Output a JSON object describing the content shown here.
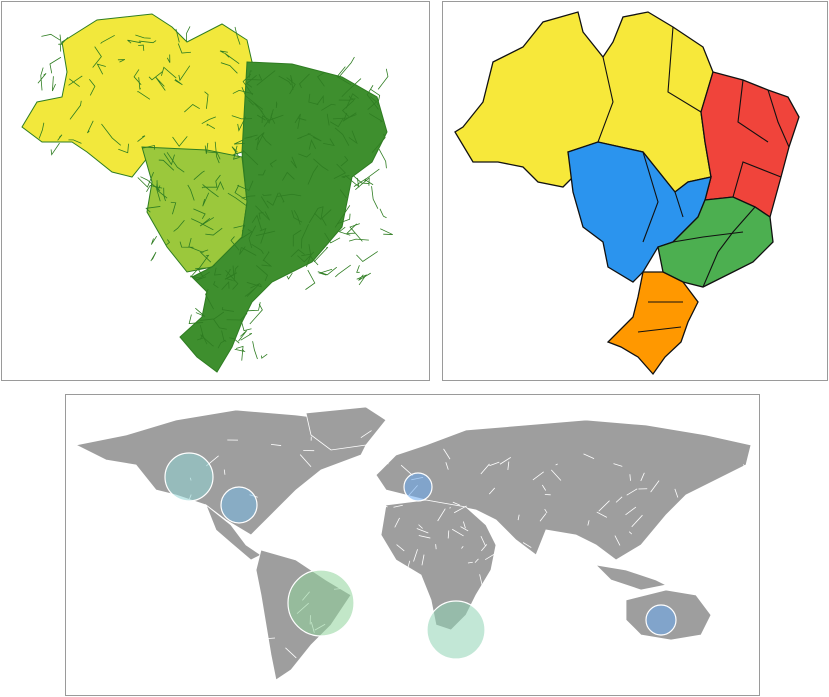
{
  "panels": [
    {
      "id": "brazil-municipalities",
      "colors": {
        "north_fill": "#f2e83c",
        "center_west_fill": "#9bc83c",
        "east_fill": "#3e8f2e",
        "borders": "#2f7d22"
      }
    },
    {
      "id": "brazil-regions",
      "regions": [
        {
          "key": "north",
          "color": "#f7e83a"
        },
        {
          "key": "northeast",
          "color": "#f0443b"
        },
        {
          "key": "center-west",
          "color": "#2b94ee"
        },
        {
          "key": "southeast",
          "color": "#4caf50"
        },
        {
          "key": "south",
          "color": "#ff9800"
        }
      ],
      "border_color": "#111111"
    },
    {
      "id": "world-bubble-map",
      "land_color": "#9e9e9e",
      "country_border_color": "#ffffff",
      "bubbles": [
        {
          "key": "usa-west",
          "color": "#8fd3d3",
          "size": "large"
        },
        {
          "key": "usa-east",
          "color": "#76b8e3",
          "size": "medium"
        },
        {
          "key": "france",
          "color": "#6aa9f0",
          "size": "small"
        },
        {
          "key": "brazil",
          "color": "#8fd39a",
          "size": "large"
        },
        {
          "key": "south-africa",
          "color": "#8fd3b4",
          "size": "large"
        },
        {
          "key": "australia",
          "color": "#6aa9f0",
          "size": "small"
        }
      ]
    }
  ]
}
